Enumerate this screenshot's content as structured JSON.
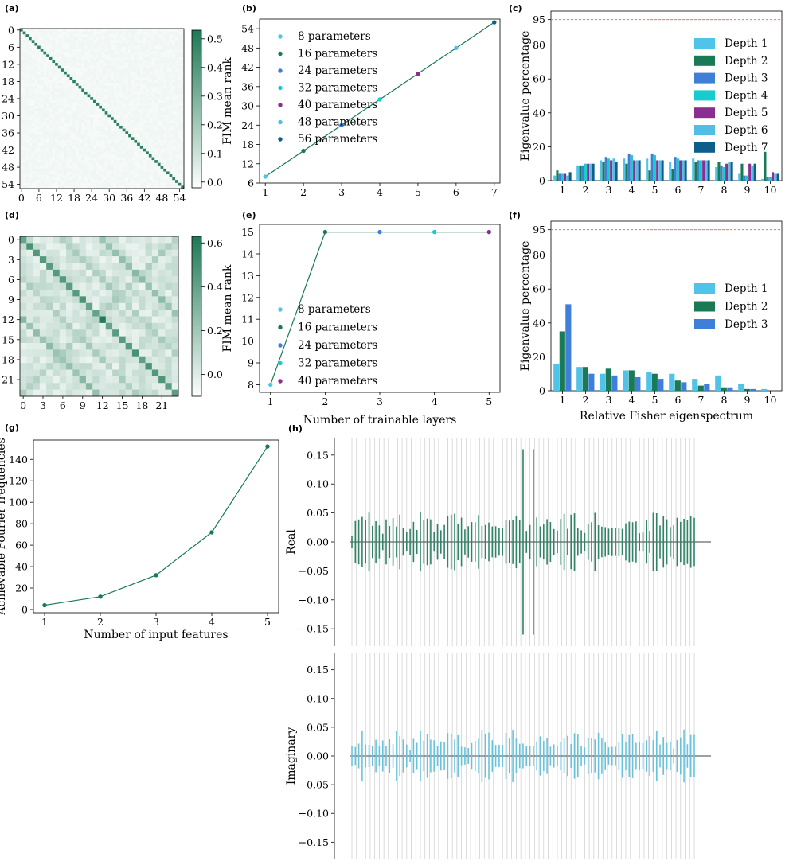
{
  "colors": {
    "depth1": "#4fc3e8",
    "depth2": "#1a7a56",
    "depth3": "#3f7fd8",
    "depth4": "#17cccc",
    "depth5": "#8a2e91",
    "depth6": "#52bde5",
    "depth7": "#0e5e8c",
    "line": "#1a7a56",
    "heat_max": "#1f7a55",
    "spec_real": "#2e8465",
    "spec_imag": "#67c3dd",
    "grid_line": "#cccccc",
    "threshold": "#e06060"
  },
  "chart_data": [
    {
      "id": "a",
      "type": "heatmap",
      "panel_label": "(a)",
      "size": 56,
      "xticks": [
        "0",
        "6",
        "12",
        "18",
        "24",
        "30",
        "36",
        "42",
        "48",
        "54"
      ],
      "yticks": [
        "0",
        "6",
        "12",
        "18",
        "24",
        "30",
        "36",
        "42",
        "48",
        "54"
      ],
      "diag_value": 0.5,
      "offdiag_value": 0.01,
      "vmin": -0.02,
      "vmax": 0.53,
      "colorbar_ticks": [
        "0.0",
        "0.1",
        "0.2",
        "0.3",
        "0.4",
        "0.5"
      ]
    },
    {
      "id": "b",
      "type": "line",
      "panel_label": "(b)",
      "x": [
        1,
        2,
        3,
        4,
        5,
        6,
        7
      ],
      "y": [
        8,
        16,
        24,
        32,
        40,
        48,
        56
      ],
      "xticks": [
        "1",
        "2",
        "3",
        "4",
        "5",
        "6",
        "7"
      ],
      "yticks": [
        "6",
        "12",
        "18",
        "24",
        "30",
        "36",
        "42",
        "48",
        "54"
      ],
      "xlim": [
        0.85,
        7.15
      ],
      "ylim": [
        6,
        57
      ],
      "ylabel": "FIM mean rank",
      "xlabel": "",
      "legend": [
        "8 parameters",
        "16 parameters",
        "24 parameters",
        "32 parameters",
        "40 parameters",
        "48 parameters",
        "56 parameters"
      ],
      "point_colors": [
        "depth1",
        "depth2",
        "depth3",
        "depth4",
        "depth5",
        "depth6",
        "depth7"
      ]
    },
    {
      "id": "c",
      "type": "bar",
      "panel_label": "(c)",
      "categories": [
        "1",
        "2",
        "3",
        "4",
        "5",
        "6",
        "7",
        "8",
        "9",
        "10"
      ],
      "yticks": [
        "0",
        "20",
        "40",
        "60",
        "80",
        "95"
      ],
      "ylim": [
        0,
        100
      ],
      "threshold": 95,
      "ylabel": "Eigenvalue percentage",
      "xlabel": "",
      "series": [
        {
          "name": "Depth 1",
          "color": "depth1",
          "values": [
            3,
            9,
            12,
            13,
            13,
            11,
            13,
            8,
            4,
            1
          ]
        },
        {
          "name": "Depth 2",
          "color": "depth2",
          "values": [
            6,
            9,
            11,
            10,
            6,
            7,
            11,
            11,
            10,
            17
          ]
        },
        {
          "name": "Depth 3",
          "color": "depth3",
          "values": [
            4,
            9,
            14,
            16,
            16,
            14,
            12,
            9,
            3,
            2
          ]
        },
        {
          "name": "Depth 4",
          "color": "depth4",
          "values": [
            4,
            10,
            13,
            15,
            15,
            13,
            12,
            8,
            3,
            2
          ]
        },
        {
          "name": "Depth 5",
          "color": "depth5",
          "values": [
            4,
            10,
            12,
            12,
            12,
            12,
            12,
            10,
            10,
            5
          ]
        },
        {
          "name": "Depth 6",
          "color": "depth6",
          "values": [
            3,
            10,
            13,
            12,
            12,
            12,
            12,
            11,
            9,
            4
          ]
        },
        {
          "name": "Depth 7",
          "color": "depth7",
          "values": [
            5,
            10,
            11,
            12,
            12,
            12,
            12,
            11,
            10,
            4
          ]
        }
      ]
    },
    {
      "id": "d",
      "type": "heatmap",
      "panel_label": "(d)",
      "size": 24,
      "xticks": [
        "0",
        "3",
        "6",
        "9",
        "12",
        "15",
        "18",
        "21"
      ],
      "yticks": [
        "0",
        "3",
        "6",
        "9",
        "12",
        "15",
        "18",
        "21"
      ],
      "diag_value": 0.45,
      "vmin": -0.1,
      "vmax": 0.63,
      "colorbar_ticks": [
        "0.0",
        "0.2",
        "0.4",
        "0.6"
      ]
    },
    {
      "id": "e",
      "type": "line",
      "panel_label": "(e)",
      "x": [
        1,
        2,
        3,
        4,
        5
      ],
      "y": [
        8,
        15,
        15,
        15,
        15
      ],
      "xticks": [
        "1",
        "2",
        "3",
        "4",
        "5"
      ],
      "yticks": [
        "8",
        "9",
        "10",
        "11",
        "12",
        "13",
        "14",
        "15"
      ],
      "xlim": [
        0.8,
        5.2
      ],
      "ylim": [
        7.65,
        15.35
      ],
      "ylabel": "FIM mean rank",
      "xlabel": "Number of trainable layers",
      "legend": [
        "8 parameters",
        "16 parameters",
        "24 parameters",
        "32 parameters",
        "40 parameters"
      ],
      "point_colors": [
        "depth1",
        "depth2",
        "depth3",
        "depth4",
        "depth5"
      ]
    },
    {
      "id": "f",
      "type": "bar",
      "panel_label": "(f)",
      "categories": [
        "1",
        "2",
        "3",
        "4",
        "5",
        "6",
        "7",
        "8",
        "9",
        "10"
      ],
      "yticks": [
        "0",
        "20",
        "40",
        "60",
        "80",
        "95"
      ],
      "ylim": [
        0,
        100
      ],
      "threshold": 95,
      "ylabel": "Eigenvalue percentage",
      "xlabel": "Relative Fisher eigenspectrum",
      "series": [
        {
          "name": "Depth 1",
          "color": "depth1",
          "values": [
            16,
            14,
            10,
            12,
            11,
            10,
            7,
            9,
            4,
            1
          ]
        },
        {
          "name": "Depth 2",
          "color": "depth2",
          "values": [
            35,
            14,
            13,
            12,
            10,
            6,
            3,
            2,
            1,
            0
          ]
        },
        {
          "name": "Depth 3",
          "color": "depth3",
          "values": [
            51,
            10,
            9,
            8,
            7,
            5,
            4,
            2,
            1,
            0
          ]
        }
      ]
    },
    {
      "id": "g",
      "type": "line",
      "panel_label": "(g)",
      "x": [
        1,
        2,
        3,
        4,
        5
      ],
      "y": [
        4,
        12,
        32,
        72,
        152
      ],
      "xticks": [
        "1",
        "2",
        "3",
        "4",
        "5"
      ],
      "yticks": [
        "0",
        "20",
        "40",
        "60",
        "80",
        "100",
        "120",
        "140"
      ],
      "xlim": [
        0.8,
        5.2
      ],
      "ylim": [
        -3,
        158
      ],
      "ylabel": "Achievable Fourier frequencies",
      "xlabel": "Number of input features"
    },
    {
      "id": "h",
      "type": "bar",
      "panel_label": "(h)",
      "subplots": [
        {
          "ylabel": "Real",
          "color": "spec_real"
        },
        {
          "ylabel": "Imaginary",
          "color": "spec_imag"
        }
      ],
      "yticks": [
        "−0.15",
        "−0.10",
        "−0.05",
        "0.00",
        "0.05",
        "0.10",
        "0.15"
      ],
      "ylim": [
        -0.18,
        0.18
      ],
      "n_bins": 101,
      "n_gridlines": 76
    }
  ]
}
